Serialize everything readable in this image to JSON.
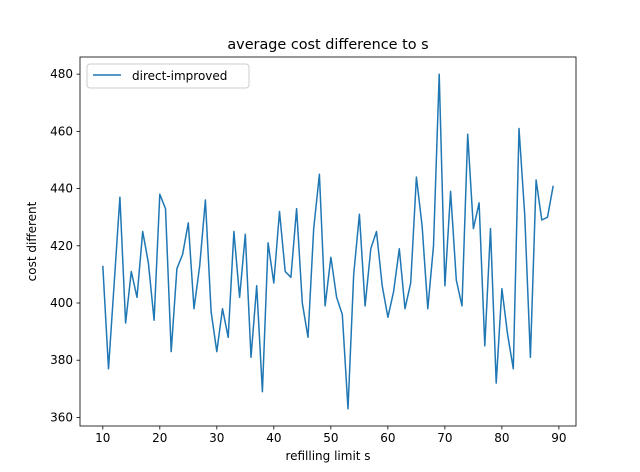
{
  "chart_data": {
    "type": "line",
    "title": "average cost difference to s",
    "xlabel": "refilling limit s",
    "ylabel": "cost different",
    "xlim": [
      6,
      93
    ],
    "ylim": [
      357,
      486
    ],
    "xticks": [
      10,
      20,
      30,
      40,
      50,
      60,
      70,
      80,
      90
    ],
    "yticks": [
      360,
      380,
      400,
      420,
      440,
      460,
      480
    ],
    "legend_position": "upper-left",
    "grid": false,
    "series": [
      {
        "name": "direct-improved",
        "color": "#1f77b4",
        "x": [
          10,
          11,
          12,
          13,
          14,
          15,
          16,
          17,
          18,
          19,
          20,
          21,
          22,
          23,
          24,
          25,
          26,
          27,
          28,
          29,
          30,
          31,
          32,
          33,
          34,
          35,
          36,
          37,
          38,
          39,
          40,
          41,
          42,
          43,
          44,
          45,
          46,
          47,
          48,
          49,
          50,
          51,
          52,
          53,
          54,
          55,
          56,
          57,
          58,
          59,
          60,
          61,
          62,
          63,
          64,
          65,
          66,
          67,
          68,
          69,
          70,
          71,
          72,
          73,
          74,
          75,
          76,
          77,
          78,
          79,
          80,
          81,
          82,
          83,
          84,
          85,
          86,
          87,
          88,
          89
        ],
        "y": [
          413,
          377,
          407,
          437,
          393,
          411,
          402,
          425,
          414,
          394,
          438,
          433,
          383,
          412,
          417,
          428,
          398,
          413,
          436,
          397,
          383,
          398,
          388,
          425,
          402,
          424,
          381,
          406,
          369,
          421,
          407,
          432,
          411,
          409,
          433,
          400,
          388,
          426,
          445,
          399,
          416,
          402,
          396,
          363,
          410,
          431,
          399,
          419,
          425,
          406,
          395,
          404,
          419,
          398,
          407,
          444,
          427,
          398,
          420,
          480,
          406,
          439,
          408,
          399,
          459,
          426,
          435,
          385,
          426,
          372,
          405,
          389,
          377,
          461,
          431,
          381,
          443,
          429,
          430,
          441
        ]
      }
    ]
  }
}
